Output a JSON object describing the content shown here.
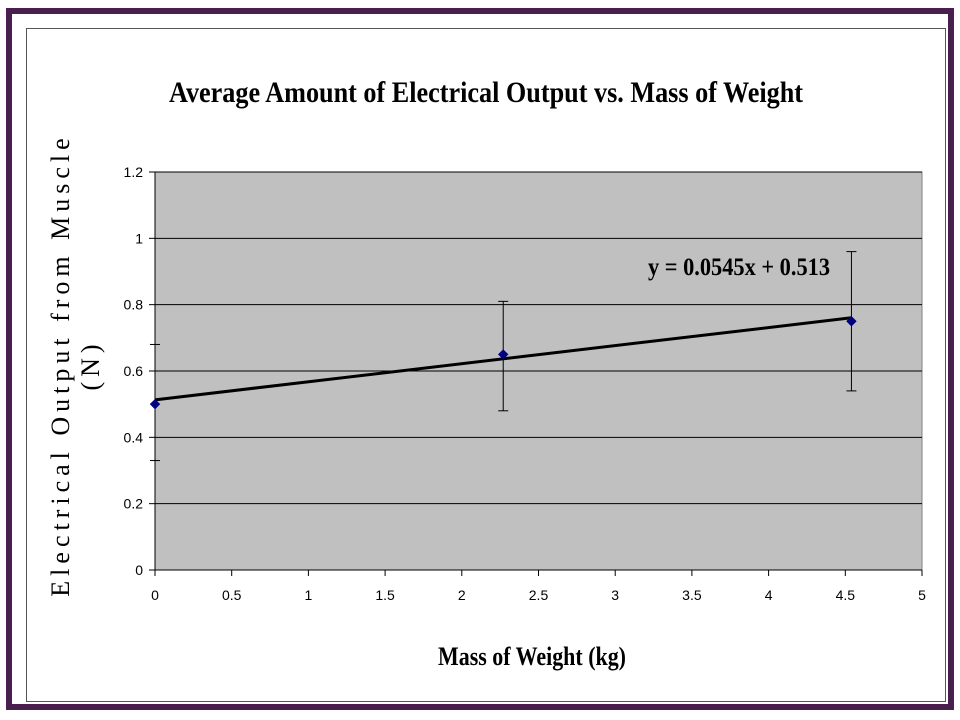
{
  "colors": {
    "frame": "#4a1f4f",
    "plot_bg": "#c0c0c0",
    "marker": "#000080",
    "line": "#000000"
  },
  "chart_data": {
    "type": "scatter",
    "title": "Average Amount of Electrical Output vs. Mass of Weight",
    "xlabel": "Mass of Weight (kg)",
    "ylabel": "Electrical Output from Muscle (N)",
    "xlim": [
      0,
      5
    ],
    "ylim": [
      0,
      1.2
    ],
    "x_ticks": [
      0,
      0.5,
      1,
      1.5,
      2,
      2.5,
      3,
      3.5,
      4,
      4.5,
      5
    ],
    "x_tick_labels": [
      "0",
      "0.5",
      "1",
      "1.5",
      "2",
      "2.5",
      "3",
      "3.5",
      "4",
      "4.5",
      "5"
    ],
    "y_ticks": [
      0,
      0.2,
      0.4,
      0.6,
      0.8,
      1,
      1.2
    ],
    "y_tick_labels": [
      "0",
      "0.2",
      "0.4",
      "0.6",
      "0.8",
      "1",
      "1.2"
    ],
    "grid": "horizontal",
    "series": [
      {
        "x": [
          0,
          2.27,
          4.54
        ],
        "y": [
          0.5,
          0.65,
          0.75
        ],
        "error_low": [
          0.33,
          0.48,
          0.54
        ],
        "error_high": [
          0.68,
          0.81,
          0.96
        ],
        "marker": "diamond"
      }
    ],
    "trendline": {
      "slope": 0.0545,
      "intercept": 0.513,
      "x_range": [
        0,
        4.54
      ],
      "equation": "y = 0.0545x + 0.513"
    }
  }
}
